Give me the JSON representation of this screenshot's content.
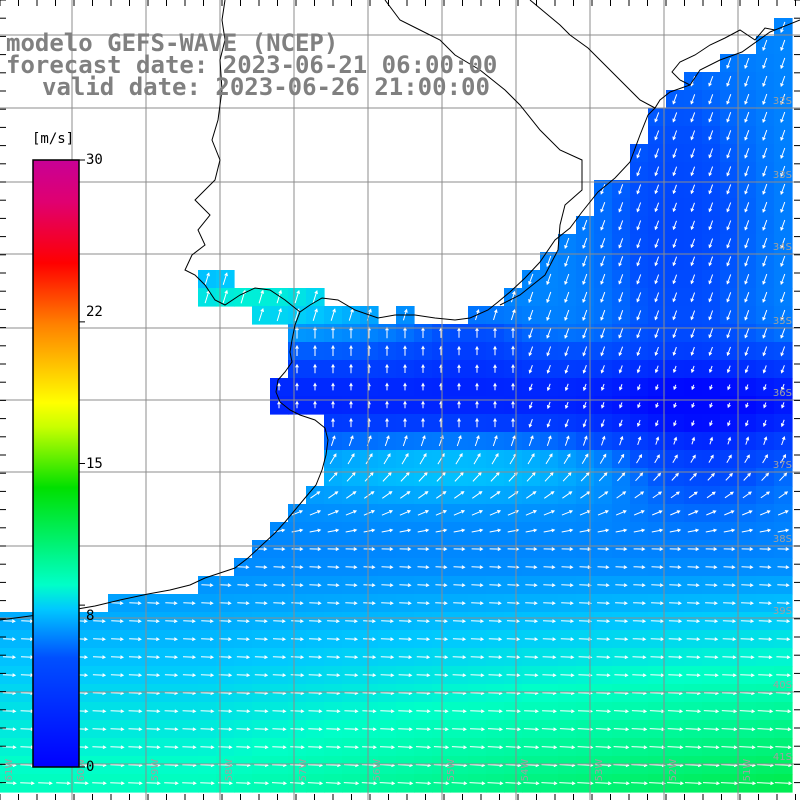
{
  "title": {
    "line1": "modelo GEFS-WAVE (NCEP)",
    "line2": "forecast date: 2023-06-21 06:00:00",
    "line3": "valid date: 2023-06-26 21:00:00"
  },
  "colorbar": {
    "unit": "[m/s]",
    "ticks": [
      "30",
      "22",
      "15",
      "8",
      "0"
    ],
    "tick_values": [
      30,
      22,
      15,
      8,
      0
    ],
    "min": 0,
    "max": 30,
    "colors": [
      "#0000ff",
      "#0050ff",
      "#00c8ff",
      "#00ffc8",
      "#00e000",
      "#c8ff00",
      "#ffff00",
      "#ff8000",
      "#ff0000",
      "#e00070",
      "#c80096"
    ],
    "color_stops": [
      0,
      0.18,
      0.26,
      0.3,
      0.46,
      0.56,
      0.6,
      0.73,
      0.83,
      0.93,
      1
    ]
  },
  "map": {
    "latitude_labels": [
      "32S",
      "33S",
      "34S",
      "35S",
      "36S",
      "37S",
      "38S",
      "39S",
      "40S",
      "41S"
    ],
    "longitude_labels": [
      "61W",
      "60W",
      "59W",
      "58W",
      "57W",
      "56W",
      "55W",
      "54W",
      "53W",
      "52W",
      "51W"
    ],
    "land_color": "#ffffff",
    "coast_color": "#000000",
    "grid_color": "#8c8c8c",
    "arrow_color": "#ffffff",
    "label_color": "#a0a0a0"
  }
}
